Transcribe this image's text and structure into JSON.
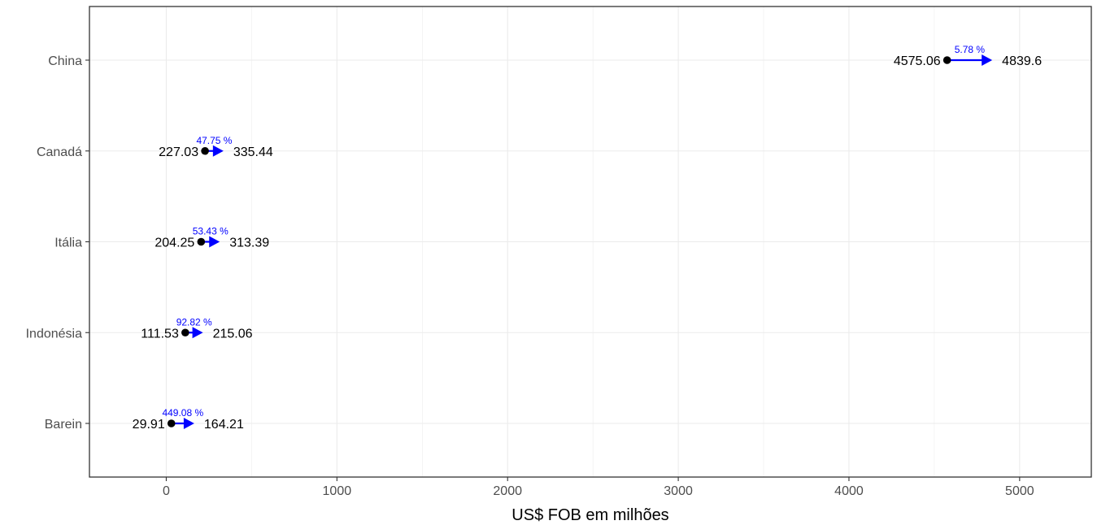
{
  "chart_data": {
    "type": "dumbbell-arrow",
    "xlabel": "US$ FOB em milhões",
    "ylabel": "",
    "xlim": [
      -450,
      5420
    ],
    "x_ticks": [
      0,
      1000,
      2000,
      3000,
      4000,
      5000
    ],
    "grid": true,
    "categories": [
      "China",
      "Canadá",
      "Itália",
      "Indonésia",
      "Barein"
    ],
    "start_values": [
      4575.06,
      227.03,
      204.25,
      111.53,
      29.91
    ],
    "end_values": [
      4839.6,
      335.44,
      313.39,
      215.06,
      164.21
    ],
    "start_labels": [
      "4575.06",
      "227.03",
      "204.25",
      "111.53",
      "29.91"
    ],
    "end_labels": [
      "4839.6",
      "335.44",
      "313.39",
      "215.06",
      "164.21"
    ],
    "pct_change_labels": [
      "5.78 %",
      "47.75 %",
      "53.43 %",
      "92.82 %",
      "449.08 %"
    ],
    "colors": {
      "arrow": "#0000ff",
      "point": "#000000",
      "grid": "#ebebeb",
      "panel_border": "#333333"
    }
  }
}
